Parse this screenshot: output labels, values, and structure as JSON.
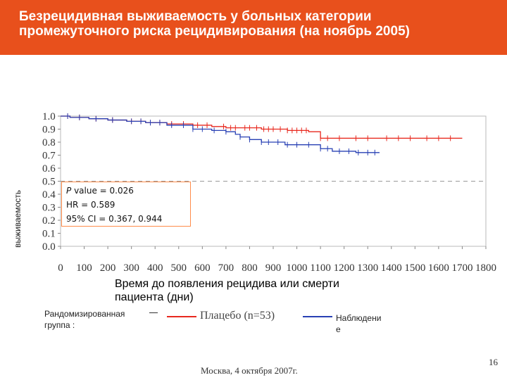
{
  "header": {
    "title": "Безрецидивная выживаемость у больных категории\nпромежуточного риска рецидивирования (на ноябрь 2005)",
    "bg_color": "#e8501c"
  },
  "chart_data": {
    "type": "line",
    "title": "",
    "ylabel": "выживаемость",
    "xlabel": "Время до появления рецидива или смерти\nпациента (дни)",
    "xlim": [
      0,
      1800
    ],
    "ylim": [
      0,
      1.0
    ],
    "x_ticks": [
      0,
      100,
      200,
      300,
      400,
      500,
      600,
      700,
      800,
      900,
      1000,
      1100,
      1200,
      1300,
      1400,
      1500,
      1600,
      1700,
      1800
    ],
    "y_ticks": [
      0.0,
      0.1,
      0.2,
      0.3,
      0.4,
      0.5,
      0.6,
      0.7,
      0.8,
      0.9,
      1.0
    ],
    "reference_line": 0.5,
    "series": [
      {
        "color": "#e8281e",
        "x": [
          0,
          40,
          120,
          200,
          280,
          360,
          450,
          560,
          640,
          700,
          760,
          850,
          960,
          1050,
          1100,
          1180,
          1700
        ],
        "y": [
          1.0,
          0.99,
          0.98,
          0.97,
          0.96,
          0.95,
          0.94,
          0.93,
          0.92,
          0.91,
          0.91,
          0.9,
          0.89,
          0.88,
          0.83,
          0.83,
          0.83
        ]
      },
      {
        "color": "#2840b4",
        "x": [
          0,
          40,
          120,
          200,
          280,
          360,
          450,
          560,
          640,
          700,
          740,
          760,
          800,
          850,
          950,
          1060,
          1100,
          1150,
          1200,
          1250,
          1350
        ],
        "y": [
          1.0,
          0.99,
          0.98,
          0.97,
          0.96,
          0.95,
          0.93,
          0.9,
          0.89,
          0.88,
          0.86,
          0.84,
          0.82,
          0.8,
          0.78,
          0.78,
          0.75,
          0.73,
          0.73,
          0.72,
          0.72
        ]
      }
    ],
    "censor_marks": [
      [
        30,
        80,
        150,
        220,
        300,
        340,
        380,
        420,
        470,
        520,
        580,
        620,
        690,
        720,
        740,
        780,
        800,
        830,
        860,
        880,
        900,
        930,
        960,
        980,
        1000,
        1020,
        1040,
        1100,
        1130,
        1180,
        1250,
        1300,
        1380,
        1430,
        1480,
        1550,
        1600,
        1650
      ],
      [
        30,
        80,
        150,
        220,
        300,
        340,
        380,
        420,
        470,
        520,
        560,
        600,
        650,
        700,
        760,
        800,
        850,
        880,
        920,
        960,
        1000,
        1050,
        1100,
        1130,
        1180,
        1220,
        1260,
        1300,
        1330
      ]
    ],
    "stats": [
      {
        "label": "P",
        "text": " value = 0.026"
      },
      {
        "label": "",
        "text": "HR = 0.589"
      },
      {
        "label": "",
        "text": "95% CI = 0.367, 0.944"
      }
    ]
  },
  "legend": {
    "group_label": "Рандомизированная\nгруппа :",
    "series1_name": "Плацебо (n=53)",
    "series2_label": "Наблюдени\nе",
    "series1_color": "#e8281e",
    "series2_color": "#2840b4"
  },
  "footer": {
    "city_date": "Москва, 4 октября 2007г.",
    "page": "16"
  }
}
